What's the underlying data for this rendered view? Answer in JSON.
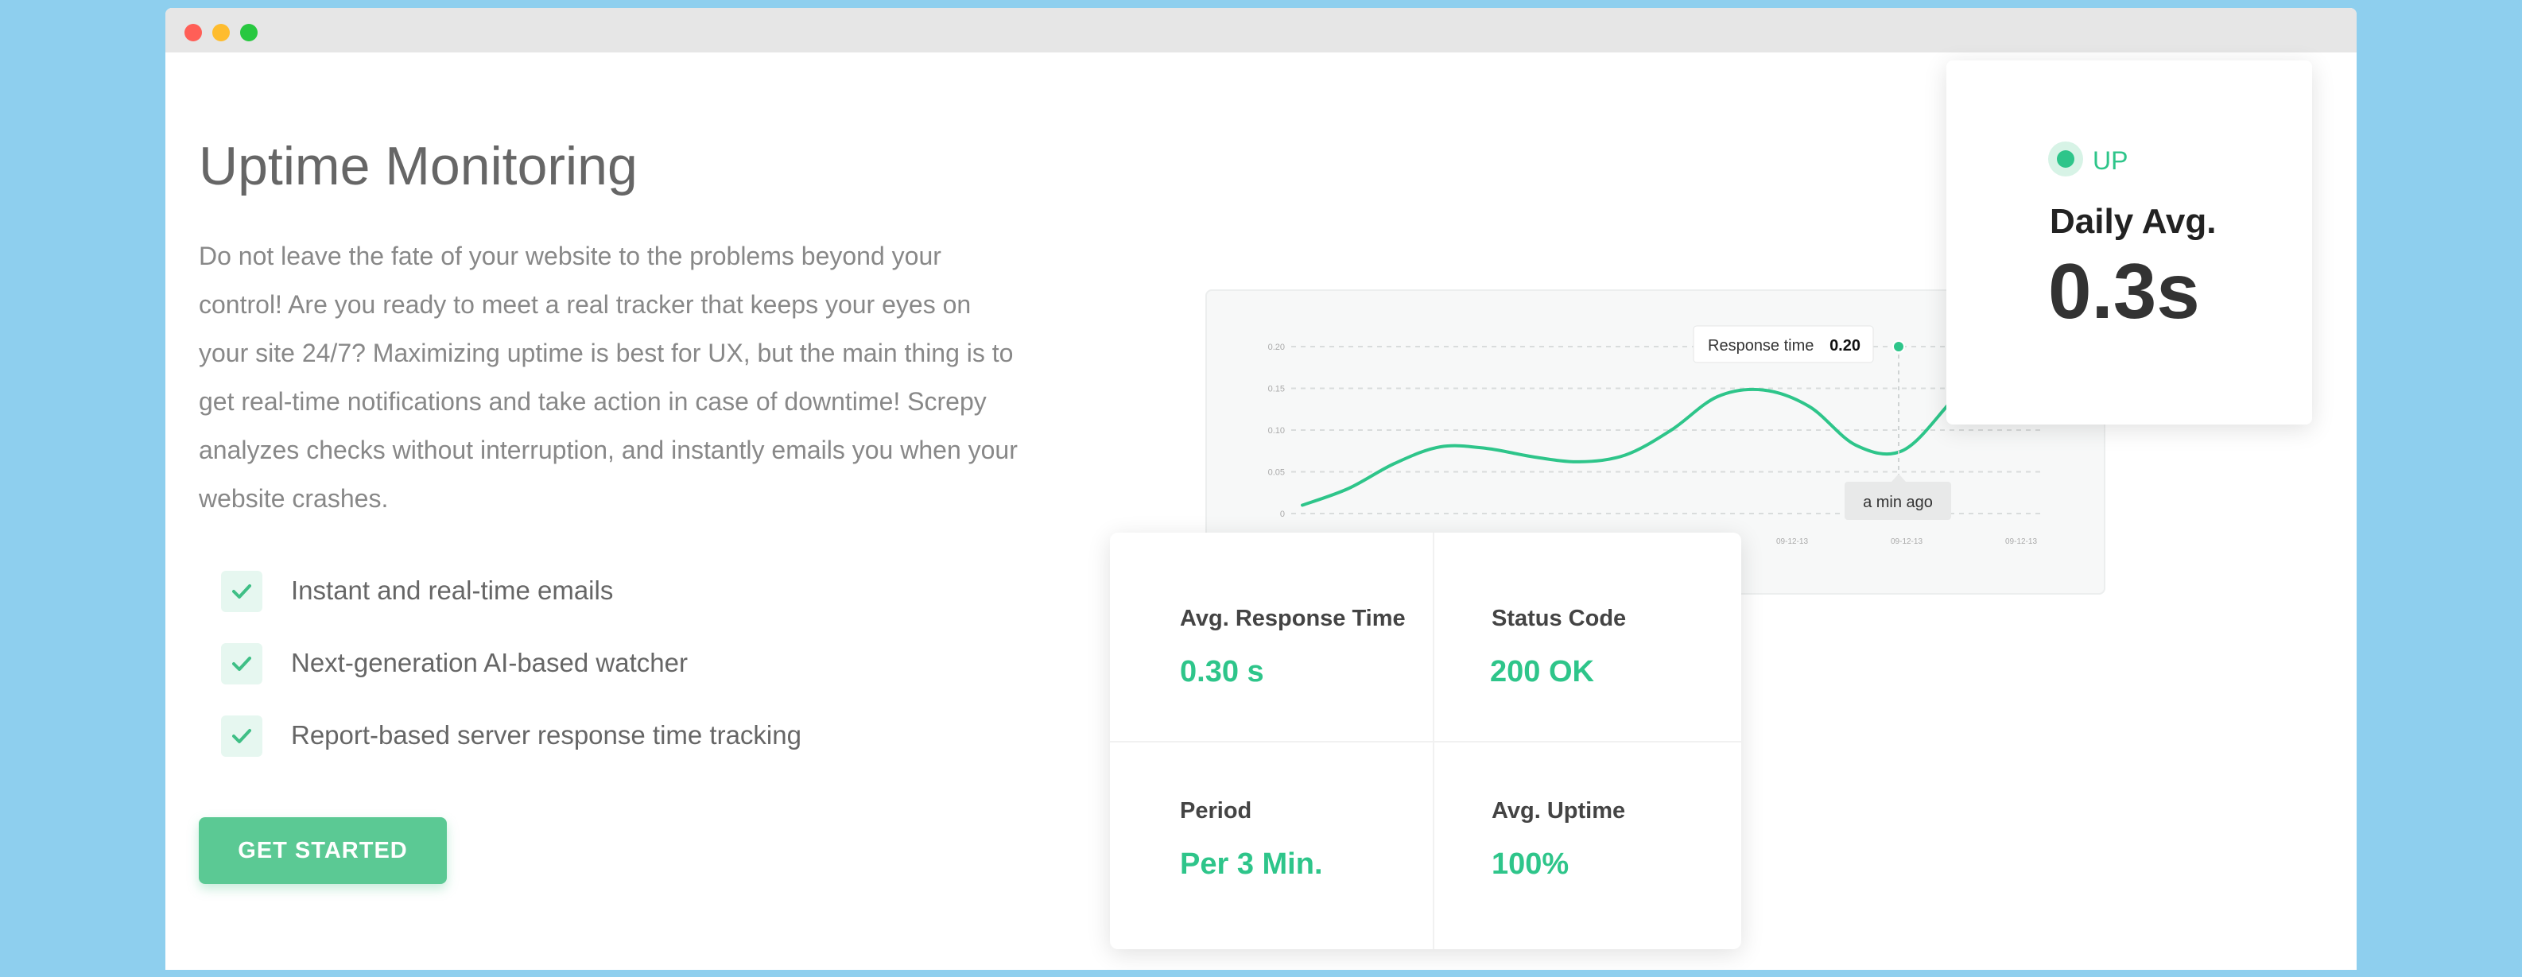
{
  "hero": {
    "title": "Uptime Monitoring",
    "description": "Do not leave the fate of your website to the problems beyond your control! Are you ready to meet a real tracker that keeps your eyes on your site 24/7? Maximizing uptime is best for UX, but the main thing is to get real-time notifications and take action in case of downtime! Screpy analyzes checks without interruption, and instantly emails you when your website crashes.",
    "features": [
      "Instant and real-time emails",
      "Next-generation AI-based watcher",
      "Report-based server response time tracking"
    ],
    "cta_label": "GET STARTED"
  },
  "status_card": {
    "status": "UP",
    "label": "Daily Avg.",
    "value": "0.3s"
  },
  "stats": {
    "response_label": "Avg. Response Time",
    "response_value": "0.30 s",
    "status_code_label": "Status Code",
    "status_code_value": "200 OK",
    "period_label": "Period",
    "period_value": "Per 3 Min.",
    "uptime_label": "Avg. Uptime",
    "uptime_value": "100%"
  },
  "colors": {
    "accent": "#2ec58a",
    "button": "#5bc994",
    "background": "#8ecfee"
  },
  "chart_data": {
    "type": "line",
    "y_ticks": [
      "0.20",
      "0.15",
      "0.10",
      "0.05",
      "0"
    ],
    "x_ticks": [
      "09-12-13",
      "09-12-13",
      "09-12-13"
    ],
    "ylim": [
      0,
      0.2
    ],
    "grid": true,
    "series": [
      {
        "values": [
          0.01,
          0.03,
          0.06,
          0.08,
          0.078,
          0.068,
          0.062,
          0.07,
          0.1,
          0.14,
          0.148,
          0.128,
          0.082,
          0.075,
          0.13,
          0.2,
          0.2
        ]
      }
    ],
    "tooltip": {
      "label": "Response time",
      "value": "0.20",
      "time": "a min ago"
    }
  }
}
